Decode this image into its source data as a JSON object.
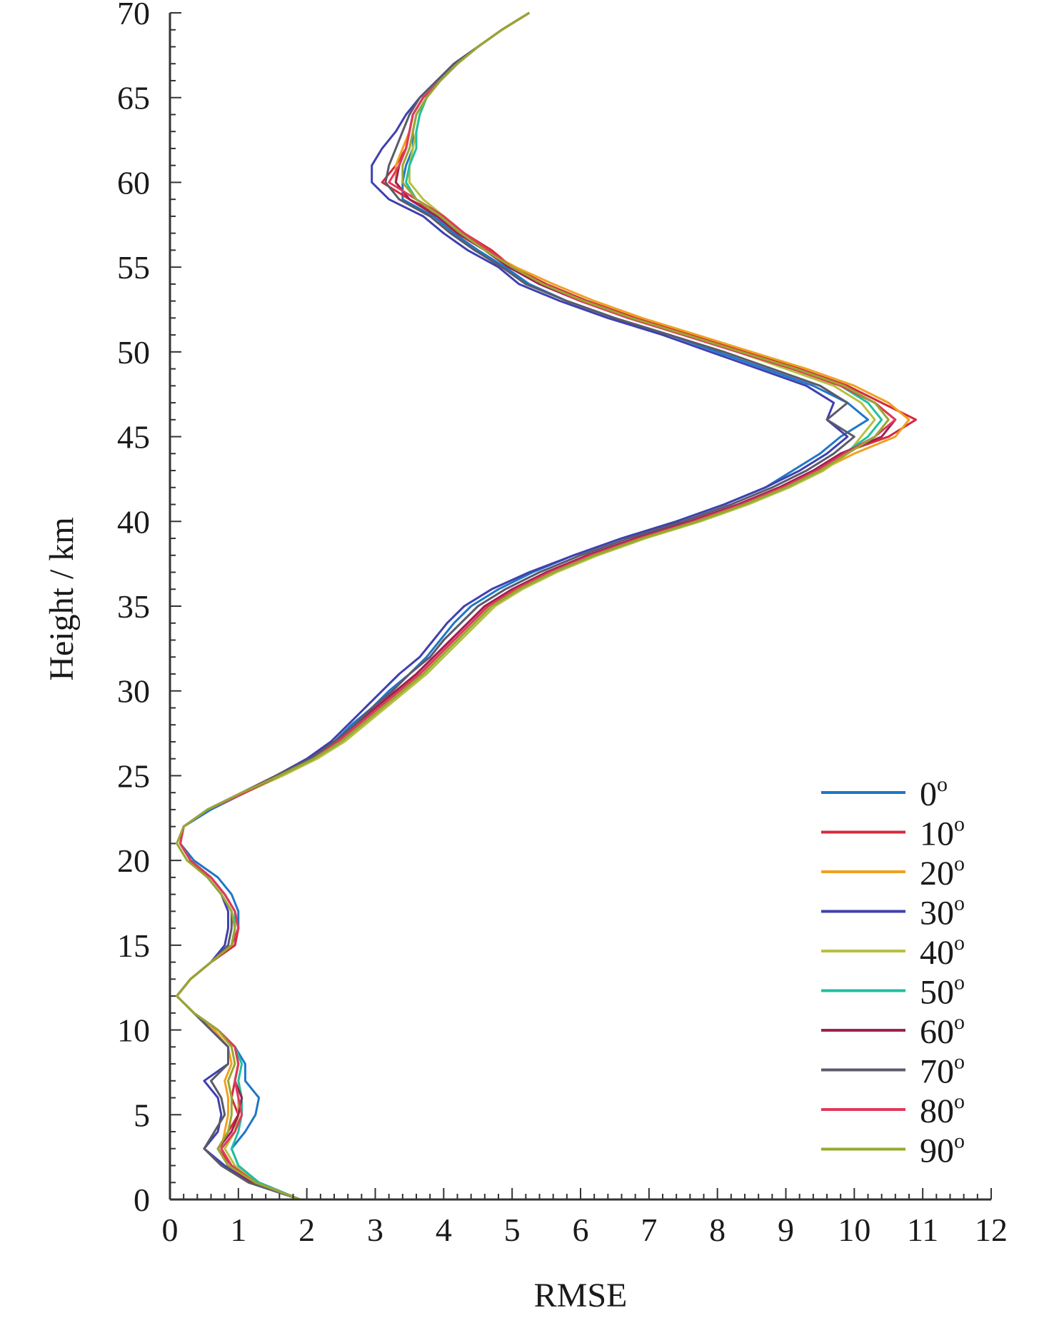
{
  "chart_data": {
    "type": "line",
    "xlabel": "RMSE",
    "ylabel": "Height / km",
    "xlim": [
      0,
      12
    ],
    "ylim": [
      0,
      70
    ],
    "xticks": [
      0,
      1,
      2,
      3,
      4,
      5,
      6,
      7,
      8,
      9,
      10,
      11,
      12
    ],
    "yticks": [
      0,
      5,
      10,
      15,
      20,
      25,
      30,
      35,
      40,
      45,
      50,
      55,
      60,
      65,
      70
    ],
    "legend_position": "lower-right",
    "grid": false,
    "heights": [
      0,
      1,
      2,
      3,
      4,
      5,
      6,
      7,
      8,
      9,
      10,
      11,
      12,
      13,
      14,
      15,
      16,
      17,
      18,
      19,
      20,
      21,
      22,
      23,
      24,
      25,
      26,
      27,
      28,
      29,
      30,
      31,
      32,
      33,
      34,
      35,
      36,
      37,
      38,
      39,
      40,
      41,
      42,
      43,
      44,
      45,
      46,
      47,
      48,
      49,
      50,
      51,
      52,
      53,
      54,
      55,
      56,
      57,
      58,
      59,
      60,
      61,
      62,
      63,
      64,
      65,
      66,
      67,
      68,
      69,
      70
    ],
    "series": [
      {
        "name": "0°",
        "color": "#1f77c8",
        "values": [
          1.9,
          1.3,
          1.0,
          0.9,
          1.1,
          1.25,
          1.3,
          1.1,
          1.1,
          0.95,
          0.7,
          0.35,
          0.1,
          0.3,
          0.6,
          0.95,
          1.0,
          1.0,
          0.9,
          0.7,
          0.35,
          0.15,
          0.2,
          0.6,
          1.1,
          1.6,
          2.05,
          2.4,
          2.65,
          2.95,
          3.2,
          3.5,
          3.75,
          3.95,
          4.15,
          4.4,
          4.8,
          5.3,
          5.9,
          6.6,
          7.4,
          8.1,
          8.7,
          9.1,
          9.5,
          9.8,
          10.2,
          9.9,
          9.4,
          8.7,
          8.0,
          7.3,
          6.5,
          5.8,
          5.25,
          4.9,
          4.5,
          4.15,
          3.85,
          3.4,
          3.4,
          3.45,
          3.55,
          3.55,
          3.6,
          3.75,
          3.95,
          4.2,
          4.5,
          4.85,
          5.25
        ]
      },
      {
        "name": "10°",
        "color": "#d62a3c",
        "values": [
          1.9,
          1.3,
          0.9,
          0.7,
          0.85,
          1.0,
          0.9,
          0.95,
          1.0,
          0.95,
          0.7,
          0.35,
          0.1,
          0.3,
          0.6,
          0.95,
          1.0,
          0.95,
          0.8,
          0.6,
          0.3,
          0.15,
          0.2,
          0.55,
          1.1,
          1.6,
          2.1,
          2.45,
          2.7,
          3.0,
          3.3,
          3.6,
          3.85,
          4.1,
          4.35,
          4.6,
          5.0,
          5.5,
          6.1,
          6.8,
          7.6,
          8.3,
          8.9,
          9.4,
          9.8,
          10.5,
          10.9,
          10.4,
          9.9,
          9.2,
          8.4,
          7.6,
          6.8,
          6.1,
          5.5,
          5.0,
          4.7,
          4.3,
          4.0,
          3.5,
          3.1,
          3.3,
          3.45,
          3.5,
          3.55,
          3.7,
          3.95,
          4.2,
          4.5,
          4.85,
          5.25
        ]
      },
      {
        "name": "20°",
        "color": "#f0a020",
        "values": [
          1.9,
          1.25,
          0.9,
          0.75,
          0.8,
          0.85,
          0.85,
          0.8,
          0.9,
          0.85,
          0.65,
          0.35,
          0.1,
          0.3,
          0.6,
          0.9,
          0.95,
          0.9,
          0.75,
          0.55,
          0.25,
          0.1,
          0.2,
          0.55,
          1.05,
          1.6,
          2.1,
          2.5,
          2.8,
          3.1,
          3.4,
          3.7,
          3.95,
          4.2,
          4.45,
          4.7,
          5.1,
          5.6,
          6.2,
          6.9,
          7.7,
          8.4,
          9.0,
          9.5,
          10.0,
          10.6,
          10.8,
          10.5,
          10.0,
          9.3,
          8.5,
          7.7,
          6.9,
          6.2,
          5.6,
          5.05,
          4.6,
          4.2,
          3.9,
          3.5,
          3.3,
          3.3,
          3.4,
          3.5,
          3.55,
          3.7,
          3.95,
          4.2,
          4.5,
          4.85,
          5.25
        ]
      },
      {
        "name": "30°",
        "color": "#4040b0",
        "values": [
          1.9,
          1.2,
          0.8,
          0.5,
          0.7,
          0.75,
          0.7,
          0.5,
          0.85,
          0.85,
          0.6,
          0.35,
          0.1,
          0.3,
          0.6,
          0.8,
          0.85,
          0.85,
          0.75,
          0.55,
          0.3,
          0.15,
          0.2,
          0.55,
          1.05,
          1.55,
          2.0,
          2.35,
          2.6,
          2.85,
          3.1,
          3.35,
          3.65,
          3.85,
          4.05,
          4.3,
          4.7,
          5.25,
          5.9,
          6.6,
          7.4,
          8.1,
          8.7,
          9.2,
          9.6,
          9.9,
          9.6,
          9.7,
          9.3,
          8.6,
          7.9,
          7.2,
          6.4,
          5.7,
          5.1,
          4.8,
          4.35,
          4.0,
          3.7,
          3.2,
          2.95,
          2.95,
          3.1,
          3.3,
          3.45,
          3.65,
          3.9,
          4.15,
          4.5,
          4.85,
          5.25
        ]
      },
      {
        "name": "40°",
        "color": "#b8c040",
        "values": [
          1.9,
          1.25,
          0.95,
          0.8,
          0.95,
          1.0,
          1.0,
          0.95,
          1.0,
          0.95,
          0.7,
          0.35,
          0.1,
          0.3,
          0.6,
          0.9,
          0.95,
          0.95,
          0.8,
          0.6,
          0.3,
          0.15,
          0.2,
          0.55,
          1.1,
          1.65,
          2.15,
          2.55,
          2.85,
          3.15,
          3.45,
          3.75,
          4.0,
          4.25,
          4.5,
          4.75,
          5.15,
          5.65,
          6.25,
          6.95,
          7.75,
          8.45,
          9.05,
          9.55,
          9.9,
          10.1,
          10.3,
          10.1,
          9.7,
          9.0,
          8.3,
          7.5,
          6.7,
          6.0,
          5.45,
          5.0,
          4.65,
          4.3,
          4.0,
          3.7,
          3.5,
          3.5,
          3.55,
          3.6,
          3.65,
          3.75,
          3.95,
          4.2,
          4.5,
          4.85,
          5.25
        ]
      },
      {
        "name": "50°",
        "color": "#20c0a0",
        "values": [
          1.9,
          1.3,
          1.0,
          0.9,
          1.0,
          1.05,
          1.05,
          1.0,
          1.05,
          0.95,
          0.7,
          0.35,
          0.1,
          0.3,
          0.6,
          0.9,
          0.95,
          0.95,
          0.8,
          0.6,
          0.3,
          0.15,
          0.2,
          0.55,
          1.1,
          1.6,
          2.1,
          2.5,
          2.8,
          3.1,
          3.4,
          3.7,
          3.95,
          4.2,
          4.45,
          4.7,
          5.1,
          5.6,
          6.2,
          6.9,
          7.7,
          8.4,
          9.0,
          9.5,
          9.85,
          10.2,
          10.4,
          10.2,
          9.8,
          9.1,
          8.3,
          7.5,
          6.7,
          6.0,
          5.4,
          4.95,
          4.6,
          4.25,
          3.95,
          3.6,
          3.45,
          3.5,
          3.6,
          3.6,
          3.65,
          3.75,
          3.95,
          4.2,
          4.5,
          4.85,
          5.25
        ]
      },
      {
        "name": "60°",
        "color": "#a02050",
        "values": [
          1.9,
          1.2,
          0.85,
          0.7,
          0.9,
          1.0,
          1.05,
          0.95,
          1.0,
          0.95,
          0.7,
          0.35,
          0.1,
          0.3,
          0.6,
          0.9,
          1.0,
          0.95,
          0.8,
          0.6,
          0.3,
          0.15,
          0.2,
          0.55,
          1.05,
          1.55,
          2.05,
          2.4,
          2.7,
          3.0,
          3.3,
          3.6,
          3.85,
          4.1,
          4.35,
          4.6,
          5.0,
          5.5,
          6.1,
          6.8,
          7.6,
          8.3,
          8.9,
          9.4,
          9.8,
          10.4,
          10.6,
          10.3,
          9.8,
          9.1,
          8.3,
          7.5,
          6.7,
          6.0,
          5.4,
          4.95,
          4.6,
          4.2,
          3.9,
          3.5,
          3.3,
          3.35,
          3.45,
          3.5,
          3.55,
          3.7,
          3.95,
          4.2,
          4.5,
          4.85,
          5.25
        ]
      },
      {
        "name": "70°",
        "color": "#5a5a6a",
        "values": [
          1.9,
          1.15,
          0.75,
          0.5,
          0.65,
          0.8,
          0.75,
          0.6,
          0.85,
          0.85,
          0.6,
          0.35,
          0.1,
          0.3,
          0.6,
          0.85,
          0.9,
          0.9,
          0.75,
          0.55,
          0.3,
          0.15,
          0.2,
          0.55,
          1.05,
          1.55,
          2.05,
          2.4,
          2.7,
          2.95,
          3.25,
          3.5,
          3.8,
          4.0,
          4.25,
          4.5,
          4.9,
          5.4,
          6.0,
          6.7,
          7.5,
          8.2,
          8.8,
          9.3,
          9.7,
          10.0,
          9.6,
          9.9,
          9.5,
          8.8,
          8.1,
          7.3,
          6.5,
          5.8,
          5.2,
          4.85,
          4.45,
          4.1,
          3.8,
          3.35,
          3.15,
          3.2,
          3.3,
          3.4,
          3.5,
          3.65,
          3.9,
          4.15,
          4.5,
          4.85,
          5.25
        ]
      },
      {
        "name": "80°",
        "color": "#e03a5a",
        "values": [
          1.9,
          1.25,
          0.9,
          0.75,
          0.95,
          1.05,
          1.0,
          0.95,
          1.0,
          0.95,
          0.7,
          0.35,
          0.1,
          0.3,
          0.6,
          0.9,
          1.0,
          0.95,
          0.8,
          0.6,
          0.3,
          0.15,
          0.2,
          0.55,
          1.1,
          1.6,
          2.1,
          2.45,
          2.75,
          3.05,
          3.35,
          3.65,
          3.9,
          4.15,
          4.4,
          4.65,
          5.05,
          5.55,
          6.15,
          6.85,
          7.65,
          8.35,
          8.95,
          9.45,
          9.85,
          10.3,
          10.6,
          10.3,
          9.8,
          9.1,
          8.3,
          7.5,
          6.7,
          6.0,
          5.45,
          5.0,
          4.65,
          4.3,
          4.0,
          3.6,
          3.2,
          3.35,
          3.45,
          3.5,
          3.55,
          3.7,
          3.95,
          4.2,
          4.5,
          4.85,
          5.25
        ]
      },
      {
        "name": "90°",
        "color": "#98a830",
        "values": [
          1.9,
          1.25,
          0.85,
          0.7,
          0.85,
          0.9,
          0.9,
          0.85,
          0.95,
          0.9,
          0.7,
          0.35,
          0.1,
          0.3,
          0.6,
          0.9,
          0.95,
          0.9,
          0.75,
          0.55,
          0.25,
          0.1,
          0.2,
          0.55,
          1.05,
          1.6,
          2.1,
          2.5,
          2.8,
          3.1,
          3.4,
          3.7,
          3.95,
          4.2,
          4.45,
          4.7,
          5.1,
          5.6,
          6.2,
          6.9,
          7.7,
          8.4,
          9.0,
          9.5,
          9.9,
          10.3,
          10.5,
          10.3,
          9.85,
          9.15,
          8.35,
          7.55,
          6.75,
          6.05,
          5.45,
          5.0,
          4.6,
          4.25,
          3.95,
          3.6,
          3.4,
          3.4,
          3.5,
          3.55,
          3.6,
          3.75,
          3.95,
          4.2,
          4.5,
          4.85,
          5.25
        ]
      }
    ]
  }
}
